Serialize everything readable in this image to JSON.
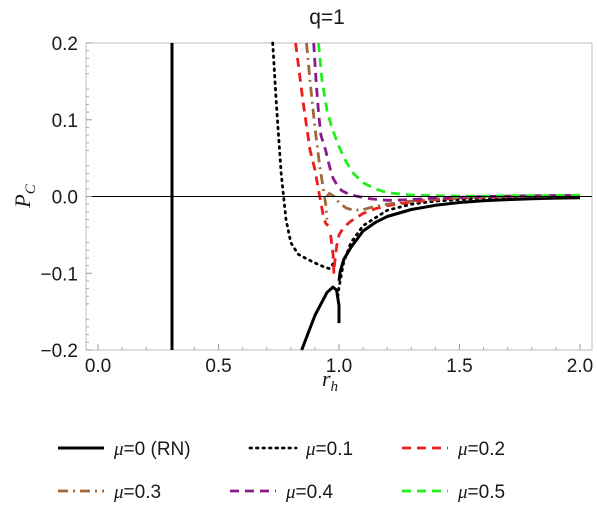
{
  "chart_data": {
    "type": "line",
    "title": "q=1",
    "xlabel": {
      "main": "r",
      "sub": "h"
    },
    "ylabel": {
      "main": "P",
      "sub": "C"
    },
    "xlim": [
      -0.05,
      2.05
    ],
    "ylim": [
      -0.2,
      0.2
    ],
    "xticks": [
      {
        "value": 0.0,
        "label": "0.0"
      },
      {
        "value": 0.5,
        "label": "0.5"
      },
      {
        "value": 1.0,
        "label": "1.0"
      },
      {
        "value": 1.5,
        "label": "1.5"
      },
      {
        "value": 2.0,
        "label": "2.0"
      }
    ],
    "yticks": [
      {
        "value": -0.2,
        "label": "−0.2"
      },
      {
        "value": -0.1,
        "label": "−0.1"
      },
      {
        "value": 0.0,
        "label": "0.0"
      },
      {
        "value": 0.1,
        "label": "0.1"
      },
      {
        "value": 0.2,
        "label": "0.2"
      }
    ],
    "grid": false,
    "legend_position": "bottom",
    "series": [
      {
        "name": "μ=0 (RN)",
        "mu_symbol": "μ",
        "mu_text": "=0 (RN)",
        "color": "#000000",
        "dash": "solid",
        "segments": [
          {
            "x": [
              0.307,
              0.307
            ],
            "y": [
              0.2,
              -0.2
            ]
          },
          {
            "x": [
              0.845,
              0.9,
              0.95,
              0.975,
              0.99,
              1.0,
              1.0
            ],
            "y": [
              -0.2,
              -0.155,
              -0.125,
              -0.118,
              -0.122,
              -0.142,
              -0.165
            ]
          },
          {
            "x": [
              1.0,
              1.005,
              1.02,
              1.05,
              1.1,
              1.15,
              1.2,
              1.3,
              1.4,
              1.5,
              1.6,
              1.7,
              1.8,
              1.9,
              2.0
            ],
            "y": [
              -0.11,
              -0.098,
              -0.082,
              -0.066,
              -0.045,
              -0.034,
              -0.026,
              -0.017,
              -0.0115,
              -0.0078,
              -0.0055,
              -0.004,
              -0.0029,
              -0.0021,
              -0.0015
            ]
          }
        ]
      },
      {
        "name": "μ=0.1",
        "mu_symbol": "μ",
        "mu_text": "=0.1",
        "color": "#000000",
        "dash": "dotted",
        "segments": [
          {
            "x": [
              0.725,
              0.74,
              0.76,
              0.78,
              0.8,
              0.83,
              0.87,
              0.91,
              0.94,
              0.96,
              0.975
            ],
            "y": [
              0.2,
              0.12,
              0.03,
              -0.03,
              -0.06,
              -0.075,
              -0.082,
              -0.088,
              -0.092,
              -0.094,
              -0.088
            ]
          },
          {
            "x": [
              0.995,
              1.0,
              1.02,
              1.05,
              1.1,
              1.2,
              1.3,
              1.4,
              1.5,
              1.6,
              1.7,
              1.8,
              1.9,
              2.0
            ],
            "y": [
              -0.13,
              -0.118,
              -0.085,
              -0.06,
              -0.038,
              -0.018,
              -0.01,
              -0.006,
              -0.004,
              -0.002,
              -0.001,
              0.0,
              0.0005,
              0.001
            ]
          }
        ]
      },
      {
        "name": "μ=0.2",
        "mu_symbol": "μ",
        "mu_text": "=0.2",
        "color": "#ee1c1c",
        "dash": "dashed",
        "segments": [
          {
            "x": [
              0.82,
              0.85,
              0.88,
              0.9,
              0.92,
              0.935,
              0.945,
              0.955
            ],
            "y": [
              0.2,
              0.125,
              0.06,
              0.035,
              0.0,
              -0.025,
              -0.035,
              -0.038
            ]
          },
          {
            "x": [
              0.965,
              0.975,
              0.98
            ],
            "y": [
              -0.05,
              -0.075,
              -0.108
            ]
          },
          {
            "x": [
              0.98,
              0.99,
              1.0,
              1.02,
              1.05,
              1.1,
              1.15,
              1.2,
              1.3,
              1.4,
              1.5,
              1.6,
              1.7,
              1.8,
              1.9,
              2.0
            ],
            "y": [
              -0.092,
              -0.065,
              -0.05,
              -0.04,
              -0.032,
              -0.022,
              -0.016,
              -0.012,
              -0.007,
              -0.004,
              -0.002,
              -0.001,
              0.0,
              0.0005,
              0.001,
              0.0015
            ]
          }
        ]
      },
      {
        "name": "μ=0.3",
        "mu_symbol": "μ",
        "mu_text": "=0.3",
        "color": "#a0673c",
        "dash": "dashdot",
        "segments": [
          {
            "x": [
              0.865,
              0.88,
              0.9,
              0.92,
              0.935,
              0.945,
              0.95
            ],
            "y": [
              0.2,
              0.15,
              0.09,
              0.04,
              0.01,
              -0.01,
              -0.03
            ]
          },
          {
            "x": [
              0.95,
              0.96,
              0.98,
              1.0,
              1.03,
              1.06,
              1.1,
              1.15,
              1.2,
              1.3,
              1.4,
              1.5,
              1.6,
              1.7,
              1.8,
              2.0
            ],
            "y": [
              0.0,
              0.004,
              0.0,
              -0.008,
              -0.015,
              -0.018,
              -0.017,
              -0.013,
              -0.01,
              -0.006,
              -0.003,
              -0.0015,
              -0.0005,
              0.0,
              0.0005,
              0.001
            ]
          }
        ]
      },
      {
        "name": "μ=0.4",
        "mu_symbol": "μ",
        "mu_text": "=0.4",
        "color": "#8a1a8a",
        "dash": "dashed",
        "segments": [
          {
            "x": [
              0.895,
              0.905,
              0.915,
              0.925,
              0.935,
              0.945,
              0.955,
              0.965,
              0.975,
              0.99,
              1.01,
              1.04,
              1.08,
              1.13,
              1.2,
              1.3,
              1.4,
              1.5,
              1.6,
              1.7,
              1.8,
              2.0
            ],
            "y": [
              0.2,
              0.15,
              0.11,
              0.08,
              0.07,
              0.06,
              0.046,
              0.034,
              0.024,
              0.016,
              0.008,
              0.003,
              0.0,
              -0.003,
              -0.005,
              -0.004,
              -0.002,
              -0.001,
              0.0,
              0.0005,
              0.001,
              0.0015
            ]
          }
        ]
      },
      {
        "name": "μ=0.5",
        "mu_symbol": "μ",
        "mu_text": "=0.5",
        "color": "#22ee1c",
        "dash": "dashed",
        "segments": [
          {
            "x": [
              0.915,
              0.93,
              0.95,
              0.97,
              1.0,
              1.03,
              1.06,
              1.1,
              1.15,
              1.2,
              1.3,
              1.4,
              1.5,
              1.6,
              1.7,
              1.8,
              2.0
            ],
            "y": [
              0.2,
              0.15,
              0.112,
              0.09,
              0.065,
              0.045,
              0.03,
              0.018,
              0.01,
              0.005,
              0.002,
              0.001,
              0.0005,
              0.0005,
              0.001,
              0.001,
              0.0015
            ]
          }
        ]
      }
    ]
  }
}
